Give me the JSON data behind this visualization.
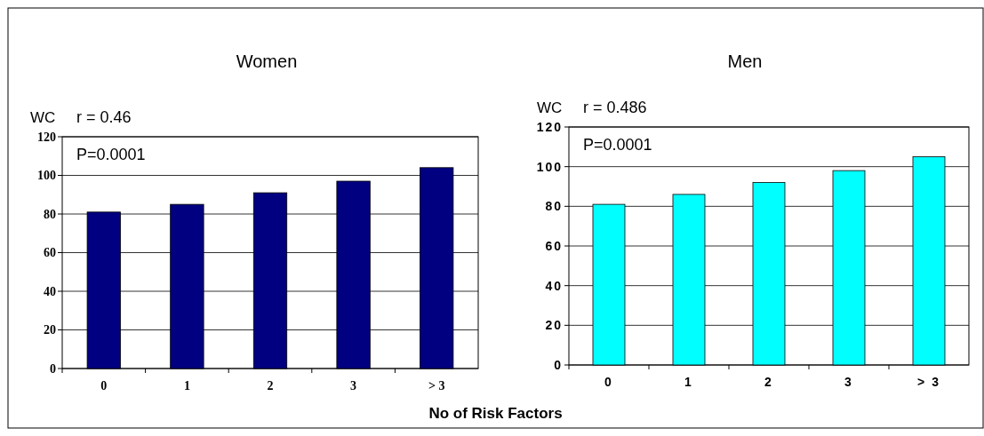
{
  "chart_data": [
    {
      "type": "bar",
      "title": "Women",
      "ylabel": "WC",
      "xlabel": "No of Risk Factors",
      "annotations": [
        "r = 0.46",
        "P=0.0001"
      ],
      "categories": [
        "0",
        "1",
        "2",
        "3",
        "> 3"
      ],
      "series": [
        {
          "color": "#000080",
          "values": [
            81,
            85,
            91,
            97,
            104
          ]
        }
      ],
      "ylim": [
        0,
        120
      ],
      "yticks": [
        0,
        20,
        40,
        60,
        80,
        100,
        120
      ],
      "grid": "y"
    },
    {
      "type": "bar",
      "title": "Men",
      "ylabel": "WC",
      "annotations": [
        "r = 0.486",
        "P=0.0001"
      ],
      "categories": [
        "0",
        "1",
        "2",
        "3",
        "> 3"
      ],
      "series": [
        {
          "color": "#00ffff",
          "values": [
            81,
            86,
            92,
            98,
            105
          ]
        }
      ],
      "ylim": [
        0,
        120
      ],
      "yticks": [
        0,
        20,
        40,
        60,
        80,
        100,
        120
      ],
      "grid": "y"
    }
  ]
}
